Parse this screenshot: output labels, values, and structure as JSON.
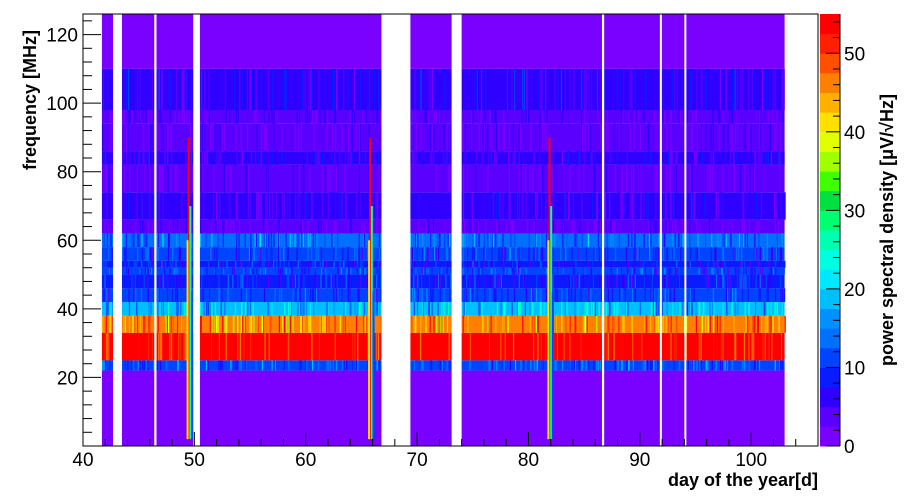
{
  "chart_data": {
    "type": "heatmap",
    "xlabel": "day of the year[d]",
    "ylabel": "frequency [MHz]",
    "colorbar_label": "power spectral density [μV/√Hz]",
    "xlim": [
      40,
      106
    ],
    "ylim": [
      0,
      126
    ],
    "x_ticks": [
      40,
      50,
      60,
      70,
      80,
      90,
      100
    ],
    "y_ticks": [
      20,
      40,
      60,
      80,
      100,
      120
    ],
    "colorbar_range": [
      0,
      55
    ],
    "colorbar_ticks": [
      0,
      10,
      20,
      30,
      40,
      50
    ],
    "color_scale": [
      "#7a00ff",
      "#5a00ff",
      "#3000ff",
      "#0a1cff",
      "#0044ff",
      "#0070ff",
      "#0090ff",
      "#00bfff",
      "#00e8ff",
      "#00ffe0",
      "#00ffb0",
      "#00ff70",
      "#00e040",
      "#40ff00",
      "#a0ff00",
      "#e0ff00",
      "#ffe000",
      "#ffb000",
      "#ff8000",
      "#ff5000",
      "#ff2000",
      "#ff0000"
    ],
    "data_days": [
      41.7,
      103.0
    ],
    "gaps_days": [
      [
        42.7,
        43.5
      ],
      [
        46.4,
        46.6
      ],
      [
        49.9,
        50.5
      ],
      [
        66.8,
        69.4
      ],
      [
        73.1,
        74.0
      ],
      [
        86.6,
        86.8
      ],
      [
        91.8,
        91.9
      ],
      [
        94.0,
        94.1
      ]
    ],
    "frequency_bands": [
      {
        "from": 0,
        "to": 22,
        "psd": 1
      },
      {
        "from": 22,
        "to": 25,
        "psd": 12
      },
      {
        "from": 25,
        "to": 33,
        "psd": 55
      },
      {
        "from": 33,
        "to": 38,
        "psd": 45
      },
      {
        "from": 38,
        "to": 42,
        "psd": 18
      },
      {
        "from": 42,
        "to": 46,
        "psd": 10
      },
      {
        "from": 46,
        "to": 50,
        "psd": 9
      },
      {
        "from": 50,
        "to": 52,
        "psd": 10
      },
      {
        "from": 52,
        "to": 54,
        "psd": 8
      },
      {
        "from": 54,
        "to": 58,
        "psd": 10
      },
      {
        "from": 58,
        "to": 62,
        "psd": 13
      },
      {
        "from": 62,
        "to": 66,
        "psd": 3
      },
      {
        "from": 66,
        "to": 74,
        "psd": 5
      },
      {
        "from": 74,
        "to": 82,
        "psd": 3
      },
      {
        "from": 82,
        "to": 86,
        "psd": 5
      },
      {
        "from": 86,
        "to": 94,
        "psd": 3
      },
      {
        "from": 94,
        "to": 98,
        "psd": 4
      },
      {
        "from": 98,
        "to": 110,
        "psd": 6
      },
      {
        "from": 110,
        "to": 126,
        "psd": 1
      }
    ],
    "transient_events_days": [
      49.4,
      65.7,
      81.8
    ]
  }
}
